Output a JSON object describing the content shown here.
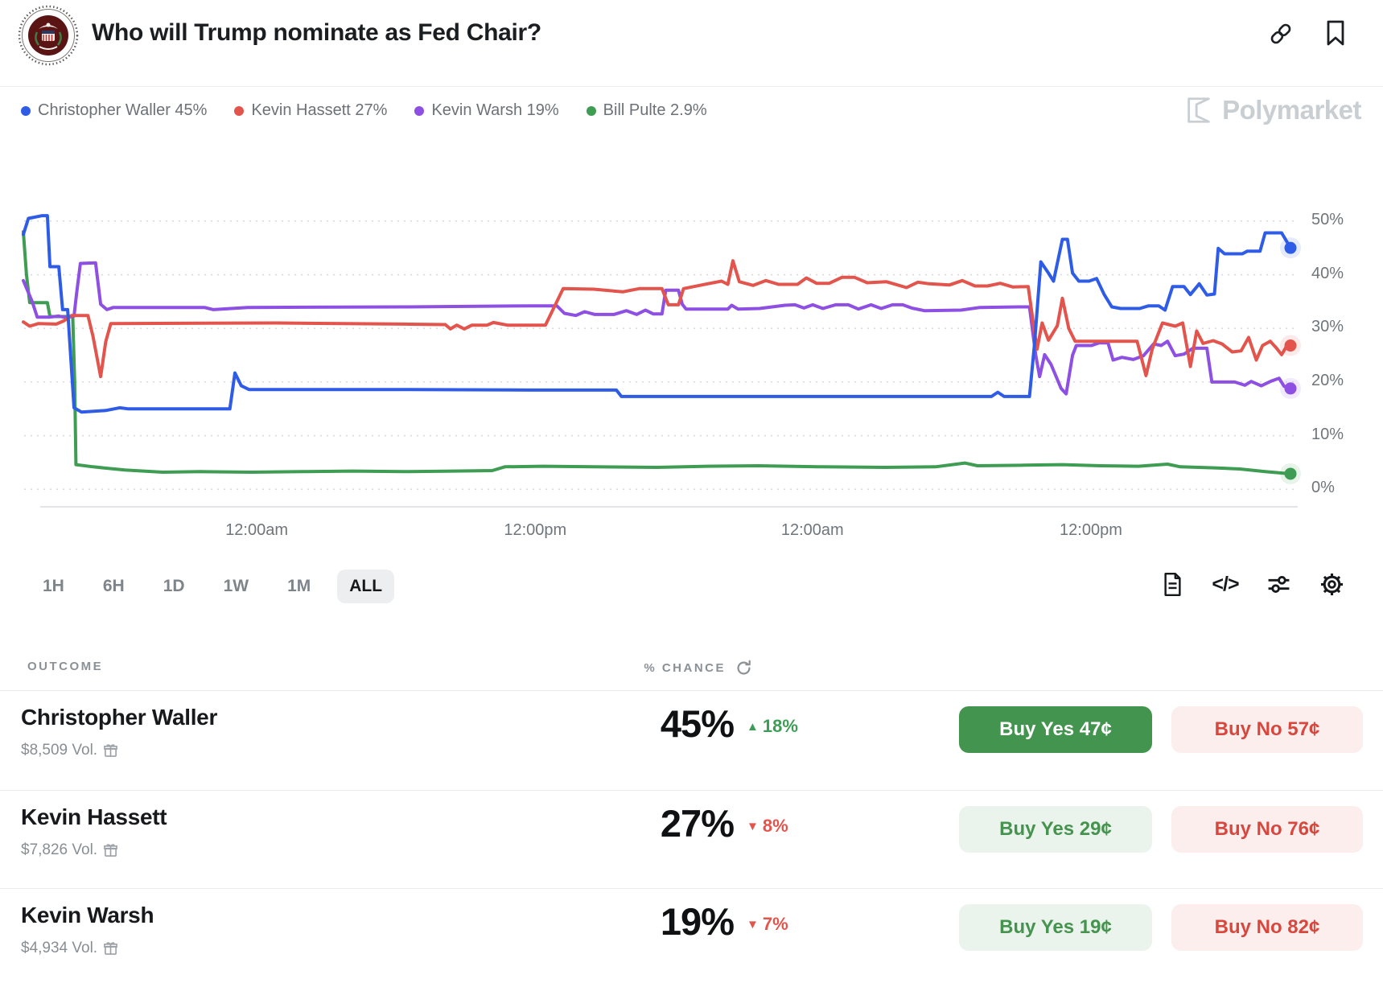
{
  "header": {
    "title": "Who will Trump nominate as Fed Chair?"
  },
  "legend": [
    {
      "label": "Christopher Waller 45%",
      "color": "#2E5CE6"
    },
    {
      "label": "Kevin Hassett 27%",
      "color": "#E2544C"
    },
    {
      "label": "Kevin Warsh 19%",
      "color": "#8E4FE3"
    },
    {
      "label": "Bill Pulte 2.9%",
      "color": "#3E9C53"
    }
  ],
  "watermark": "Polymarket",
  "chart_data": {
    "type": "line",
    "ylim": [
      0,
      55
    ],
    "grid": "dotted-horizontal",
    "y_tick_labels": [
      "50%",
      "40%",
      "30%",
      "20%",
      "10%",
      "0%"
    ],
    "y_tick_values": [
      50,
      40,
      30,
      20,
      10,
      0
    ],
    "x_ticks": [
      {
        "label": "12:00am",
        "pos": 19.2
      },
      {
        "label": "12:00pm",
        "pos": 40.7
      },
      {
        "label": "12:00am",
        "pos": 62.1
      },
      {
        "label": "12:00pm",
        "pos": 83.6
      }
    ],
    "series": [
      {
        "name": "Bill Pulte",
        "color": "#3E9C53",
        "current": "2.9%",
        "points": [
          [
            0,
            48
          ],
          [
            0.25,
            40
          ],
          [
            0.5,
            34.8
          ],
          [
            1.9,
            34.8
          ],
          [
            2.1,
            32.2
          ],
          [
            3.9,
            32.2
          ],
          [
            4.05,
            20
          ],
          [
            4.15,
            4.6
          ],
          [
            5.5,
            4.2
          ],
          [
            8,
            3.6
          ],
          [
            11,
            3.2
          ],
          [
            14,
            3.3
          ],
          [
            18,
            3.2
          ],
          [
            22,
            3.3
          ],
          [
            26,
            3.4
          ],
          [
            30,
            3.3
          ],
          [
            34,
            3.4
          ],
          [
            37,
            3.5
          ],
          [
            38,
            4.2
          ],
          [
            41,
            4.3
          ],
          [
            45,
            4.2
          ],
          [
            50,
            4.1
          ],
          [
            54,
            4.3
          ],
          [
            58,
            4.4
          ],
          [
            63,
            4.2
          ],
          [
            68,
            4.1
          ],
          [
            72,
            4.2
          ],
          [
            74.3,
            4.9
          ],
          [
            75.3,
            4.4
          ],
          [
            79,
            4.5
          ],
          [
            82,
            4.6
          ],
          [
            85,
            4.4
          ],
          [
            88,
            4.3
          ],
          [
            90.3,
            4.7
          ],
          [
            91.3,
            4.2
          ],
          [
            94,
            4.0
          ],
          [
            96,
            3.8
          ],
          [
            98,
            3.3
          ],
          [
            100,
            2.9
          ]
        ]
      },
      {
        "name": "Kevin Warsh",
        "color": "#8E4FE3",
        "current": "19%",
        "points": [
          [
            0,
            38.9
          ],
          [
            0.7,
            35
          ],
          [
            1.1,
            32.1
          ],
          [
            2.1,
            32.1
          ],
          [
            2.8,
            32.3
          ],
          [
            3.4,
            32.0
          ],
          [
            4.0,
            32.3
          ],
          [
            4.2,
            36.5
          ],
          [
            4.5,
            42.1
          ],
          [
            5.7,
            42.2
          ],
          [
            6.1,
            34.5
          ],
          [
            6.6,
            33.5
          ],
          [
            7.1,
            33.9
          ],
          [
            14.3,
            33.9
          ],
          [
            15.0,
            33.5
          ],
          [
            17.7,
            33.9
          ],
          [
            30,
            34.0
          ],
          [
            40,
            34.2
          ],
          [
            42.1,
            34.2
          ],
          [
            42.7,
            32.8
          ],
          [
            43.6,
            32.4
          ],
          [
            44.3,
            33.1
          ],
          [
            45.1,
            32.6
          ],
          [
            46.6,
            32.6
          ],
          [
            47.6,
            33.3
          ],
          [
            48.4,
            32.6
          ],
          [
            49.1,
            33.4
          ],
          [
            49.7,
            32.7
          ],
          [
            50.4,
            32.7
          ],
          [
            50.7,
            37.1
          ],
          [
            51.7,
            37.1
          ],
          [
            52.0,
            34.5
          ],
          [
            52.3,
            33.6
          ],
          [
            55.6,
            33.6
          ],
          [
            55.9,
            34.3
          ],
          [
            56.4,
            33.6
          ],
          [
            58.1,
            33.7
          ],
          [
            60.1,
            34.3
          ],
          [
            60.9,
            34.4
          ],
          [
            61.6,
            33.8
          ],
          [
            62.3,
            34.4
          ],
          [
            63.1,
            33.7
          ],
          [
            64.1,
            34.4
          ],
          [
            65.1,
            34.4
          ],
          [
            65.9,
            33.6
          ],
          [
            66.9,
            34.4
          ],
          [
            67.7,
            33.7
          ],
          [
            68.6,
            34.4
          ],
          [
            69.4,
            34.4
          ],
          [
            70.1,
            33.8
          ],
          [
            71.1,
            33.3
          ],
          [
            74,
            33.4
          ],
          [
            75.5,
            33.9
          ],
          [
            78.5,
            34.0
          ],
          [
            79.4,
            34.0
          ],
          [
            79.9,
            25
          ],
          [
            80.2,
            21.0
          ],
          [
            80.6,
            25.1
          ],
          [
            81.1,
            23.3
          ],
          [
            81.9,
            18.8
          ],
          [
            82.3,
            17.8
          ],
          [
            82.8,
            25.0
          ],
          [
            83.1,
            26.8
          ],
          [
            84.3,
            26.8
          ],
          [
            84.9,
            27.3
          ],
          [
            85.6,
            27.3
          ],
          [
            86.0,
            24.1
          ],
          [
            86.7,
            24.6
          ],
          [
            87.6,
            24.2
          ],
          [
            88.4,
            24.9
          ],
          [
            89.2,
            27.1
          ],
          [
            89.8,
            26.8
          ],
          [
            90.3,
            27.6
          ],
          [
            90.9,
            24.9
          ],
          [
            91.6,
            25.2
          ],
          [
            92.3,
            26.3
          ],
          [
            93.4,
            26.3
          ],
          [
            93.8,
            20.0
          ],
          [
            95.6,
            20.0
          ],
          [
            96.4,
            19.4
          ],
          [
            96.9,
            20.1
          ],
          [
            97.7,
            19.3
          ],
          [
            98.5,
            20.2
          ],
          [
            99.1,
            20.7
          ],
          [
            99.5,
            19.2
          ],
          [
            100,
            18.8
          ]
        ]
      },
      {
        "name": "Kevin Hassett",
        "color": "#E2544C",
        "current": "27%",
        "points": [
          [
            0,
            31.2
          ],
          [
            0.5,
            30.4
          ],
          [
            1.2,
            30.9
          ],
          [
            2.6,
            30.8
          ],
          [
            3.2,
            31.4
          ],
          [
            3.8,
            32.4
          ],
          [
            5.1,
            32.4
          ],
          [
            5.5,
            28.5
          ],
          [
            6.1,
            21
          ],
          [
            6.5,
            27.5
          ],
          [
            6.9,
            30.9
          ],
          [
            20,
            31
          ],
          [
            30,
            30.8
          ],
          [
            33.3,
            30.7
          ],
          [
            33.7,
            29.9
          ],
          [
            34.2,
            30.6
          ],
          [
            34.8,
            29.9
          ],
          [
            35.4,
            30.6
          ],
          [
            36.6,
            30.6
          ],
          [
            37.1,
            31.1
          ],
          [
            38.2,
            30.6
          ],
          [
            41.2,
            30.6
          ],
          [
            42.6,
            37.4
          ],
          [
            45,
            37.3
          ],
          [
            47.3,
            36.8
          ],
          [
            48.6,
            37.4
          ],
          [
            50.4,
            37.4
          ],
          [
            50.9,
            34.4
          ],
          [
            51.7,
            34.4
          ],
          [
            52.1,
            37.4
          ],
          [
            54,
            38.3
          ],
          [
            55.1,
            38.8
          ],
          [
            55.6,
            38.2
          ],
          [
            56.0,
            42.6
          ],
          [
            56.5,
            38.7
          ],
          [
            57.6,
            38.0
          ],
          [
            58.6,
            38.9
          ],
          [
            59.6,
            38.2
          ],
          [
            61.1,
            38.2
          ],
          [
            61.8,
            39.4
          ],
          [
            62.6,
            38.4
          ],
          [
            63.6,
            38.4
          ],
          [
            64.6,
            39.5
          ],
          [
            65.6,
            39.5
          ],
          [
            66.6,
            38.5
          ],
          [
            68.1,
            38.7
          ],
          [
            69.7,
            37.6
          ],
          [
            70.6,
            38.6
          ],
          [
            71.5,
            38.3
          ],
          [
            73.1,
            38.1
          ],
          [
            74.1,
            38.9
          ],
          [
            75.1,
            37.9
          ],
          [
            76.1,
            37.9
          ],
          [
            77.1,
            38.4
          ],
          [
            78.1,
            37.7
          ],
          [
            79.3,
            37.8
          ],
          [
            79.7,
            31
          ],
          [
            80.0,
            26.1
          ],
          [
            80.4,
            31
          ],
          [
            80.9,
            27.8
          ],
          [
            81.6,
            30.5
          ],
          [
            82.0,
            35.6
          ],
          [
            82.5,
            30
          ],
          [
            83.0,
            27.6
          ],
          [
            87.9,
            27.6
          ],
          [
            88.6,
            21.2
          ],
          [
            89.1,
            26.2
          ],
          [
            89.9,
            31
          ],
          [
            90.9,
            30.4
          ],
          [
            91.5,
            31
          ],
          [
            92.1,
            22.9
          ],
          [
            92.6,
            29.5
          ],
          [
            93.1,
            27.2
          ],
          [
            93.9,
            27.7
          ],
          [
            94.6,
            27.1
          ],
          [
            95.4,
            25.6
          ],
          [
            96.1,
            25.8
          ],
          [
            96.7,
            28.3
          ],
          [
            97.3,
            24.1
          ],
          [
            97.8,
            26.8
          ],
          [
            98.4,
            27.6
          ],
          [
            98.9,
            26.3
          ],
          [
            99.3,
            25.1
          ],
          [
            99.7,
            26.7
          ],
          [
            100,
            26.8
          ]
        ]
      },
      {
        "name": "Christopher Waller",
        "color": "#2E5CE6",
        "current": "45%",
        "points": [
          [
            0,
            47.5
          ],
          [
            0.4,
            50.5
          ],
          [
            1.5,
            51
          ],
          [
            1.9,
            51
          ],
          [
            2.1,
            41.5
          ],
          [
            2.8,
            41.5
          ],
          [
            3.1,
            33.5
          ],
          [
            3.5,
            33.5
          ],
          [
            4.0,
            15.2
          ],
          [
            4.6,
            14.4
          ],
          [
            6.5,
            14.7
          ],
          [
            7.6,
            15.2
          ],
          [
            8.3,
            15.0
          ],
          [
            12,
            15.0
          ],
          [
            16.3,
            15.0
          ],
          [
            16.7,
            21.7
          ],
          [
            17.2,
            19.3
          ],
          [
            17.8,
            18.6
          ],
          [
            30,
            18.6
          ],
          [
            40,
            18.5
          ],
          [
            46.8,
            18.5
          ],
          [
            47.2,
            17.3
          ],
          [
            60,
            17.3
          ],
          [
            76.4,
            17.3
          ],
          [
            76.9,
            18.1
          ],
          [
            77.4,
            17.3
          ],
          [
            79.4,
            17.3
          ],
          [
            79.8,
            27
          ],
          [
            80.3,
            42.4
          ],
          [
            80.9,
            40.3
          ],
          [
            81.3,
            38.8
          ],
          [
            82.0,
            46.6
          ],
          [
            82.4,
            46.6
          ],
          [
            82.8,
            40.3
          ],
          [
            83.3,
            38.8
          ],
          [
            84.1,
            38.8
          ],
          [
            84.7,
            39.3
          ],
          [
            85.3,
            36.3
          ],
          [
            85.9,
            34.0
          ],
          [
            86.6,
            33.7
          ],
          [
            88.1,
            33.7
          ],
          [
            88.8,
            34.2
          ],
          [
            89.6,
            34.2
          ],
          [
            90.1,
            33.4
          ],
          [
            90.7,
            37.8
          ],
          [
            91.6,
            37.8
          ],
          [
            92.1,
            36.3
          ],
          [
            92.8,
            38.3
          ],
          [
            93.4,
            36.2
          ],
          [
            94.0,
            36.4
          ],
          [
            94.3,
            44.9
          ],
          [
            94.8,
            43.9
          ],
          [
            96.2,
            43.9
          ],
          [
            96.6,
            44.4
          ],
          [
            97.6,
            44.4
          ],
          [
            98.0,
            47.8
          ],
          [
            99.3,
            47.8
          ],
          [
            99.7,
            46.2
          ],
          [
            100,
            45
          ]
        ]
      }
    ]
  },
  "timeframes": {
    "options": [
      "1H",
      "6H",
      "1D",
      "1W",
      "1M",
      "ALL"
    ],
    "selected": "ALL"
  },
  "table": {
    "outcome_header": "OUTCOME",
    "chance_header": "% CHANCE",
    "button_styles": {
      "yes_solid": {
        "bg": "#43944F",
        "color": "#FFFFFF"
      },
      "yes_light": {
        "bg": "#EAF4EC",
        "color": "#45934F"
      },
      "no": {
        "bg": "#FBEEEC",
        "color": "#D8473E"
      }
    },
    "rows": [
      {
        "name": "Christopher Waller",
        "volume": "$8,509 Vol.",
        "chance": "45%",
        "delta": "18%",
        "delta_arrow": "▲",
        "delta_color": "#3F9C57",
        "yes_label": "Buy Yes 47¢",
        "no_label": "Buy No 57¢",
        "yes_variant": "solid"
      },
      {
        "name": "Kevin Hassett",
        "volume": "$7,826 Vol.",
        "chance": "27%",
        "delta": "8%",
        "delta_arrow": "▼",
        "delta_color": "#E2544C",
        "yes_label": "Buy Yes 29¢",
        "no_label": "Buy No 76¢",
        "yes_variant": "light"
      },
      {
        "name": "Kevin Warsh",
        "volume": "$4,934 Vol.",
        "chance": "19%",
        "delta": "7%",
        "delta_arrow": "▼",
        "delta_color": "#E2544C",
        "yes_label": "Buy Yes 19¢",
        "no_label": "Buy No 82¢",
        "yes_variant": "light"
      }
    ]
  }
}
